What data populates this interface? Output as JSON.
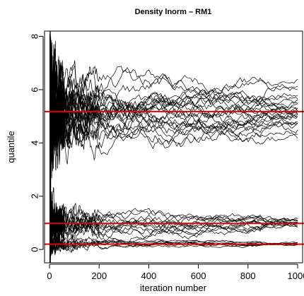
{
  "chart_data": {
    "type": "line",
    "title": "Density lnorm – RM1",
    "xlabel": "iteration number",
    "ylabel": "quantile",
    "xlim": [
      -20,
      1020
    ],
    "ylim": [
      -0.5,
      8.2
    ],
    "x_ticks": [
      0,
      200,
      400,
      600,
      800,
      1000
    ],
    "y_ticks": [
      0,
      2,
      4,
      6,
      8
    ],
    "x_tick_labels": [
      "0",
      "200",
      "400",
      "600",
      "800",
      "1000"
    ],
    "y_tick_labels": [
      "0",
      "2",
      "4",
      "6",
      "8"
    ],
    "grid": false,
    "legend": "none",
    "line_color": "#000000",
    "reference_color": "#e00000",
    "reference_lines": [
      0.2,
      0.98,
      5.18
    ],
    "series_groups": [
      {
        "target": 5.18,
        "final_values": [
          6.28,
          6.12,
          5.95,
          5.78,
          5.65,
          5.55,
          5.45,
          5.38,
          5.32,
          5.27,
          5.22,
          5.18,
          5.14,
          5.1,
          5.06,
          5.02,
          4.98,
          4.93,
          4.88,
          4.8,
          4.7,
          4.6,
          4.5,
          4.38,
          4.18
        ],
        "initial_range": [
          -0.4,
          8.2
        ]
      },
      {
        "target": 0.98,
        "final_values": [
          1.14,
          1.1,
          1.07,
          1.05,
          1.03,
          1.01,
          0.99,
          0.97,
          0.95,
          0.93,
          0.91,
          0.88,
          0.85
        ],
        "initial_range": [
          -0.4,
          4.6
        ]
      },
      {
        "target": 0.2,
        "final_values": [
          0.25,
          0.23,
          0.22,
          0.21,
          0.2,
          0.19,
          0.18,
          0.17
        ],
        "initial_range": [
          -0.4,
          1.6
        ]
      }
    ],
    "iterations": 1000
  }
}
